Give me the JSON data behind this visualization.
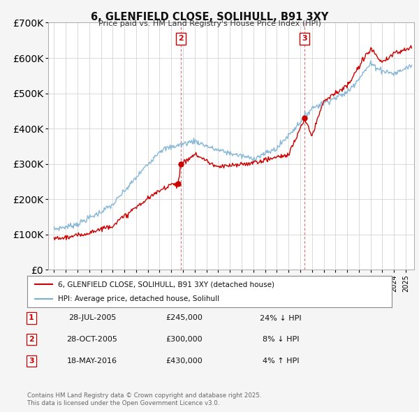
{
  "title": "6, GLENFIELD CLOSE, SOLIHULL, B91 3XY",
  "subtitle": "Price paid vs. HM Land Registry's House Price Index (HPI)",
  "legend_line1": "6, GLENFIELD CLOSE, SOLIHULL, B91 3XY (detached house)",
  "legend_line2": "HPI: Average price, detached house, Solihull",
  "footer": "Contains HM Land Registry data © Crown copyright and database right 2025.\nThis data is licensed under the Open Government Licence v3.0.",
  "transactions": [
    {
      "num": 1,
      "date": "28-JUL-2005",
      "price": "£245,000",
      "pct": "24%",
      "dir": "↓",
      "x": 2005.57
    },
    {
      "num": 2,
      "date": "28-OCT-2005",
      "price": "£300,000",
      "pct": "8%",
      "dir": "↓",
      "x": 2005.82
    },
    {
      "num": 3,
      "date": "18-MAY-2016",
      "price": "£430,000",
      "pct": "4%",
      "dir": "↑",
      "x": 2016.38
    }
  ],
  "ylim": [
    0,
    700000
  ],
  "xlim_start": 1994.5,
  "xlim_end": 2025.7,
  "color_red": "#cc0000",
  "color_blue": "#7ab0d4",
  "background": "#f5f5f5",
  "plot_bg": "#ffffff",
  "grid_color": "#cccccc"
}
